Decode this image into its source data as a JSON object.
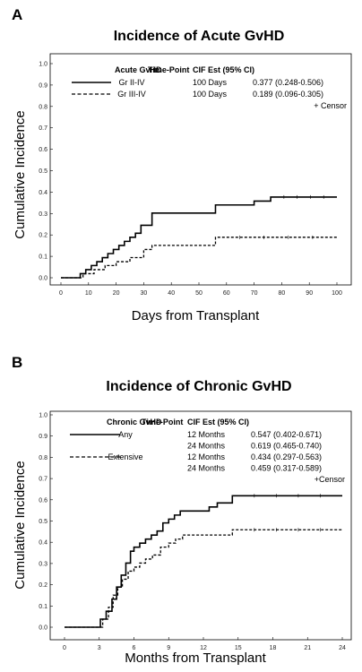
{
  "chart_data": [
    {
      "panel": "A",
      "type": "line",
      "step": true,
      "title": "Incidence of Acute GvHD",
      "xlabel": "Days from Transplant",
      "ylabel": "Cumulative Incidence",
      "xlim": [
        0,
        100
      ],
      "ylim": [
        0,
        1.0
      ],
      "xticks": [
        0,
        10,
        20,
        30,
        40,
        50,
        60,
        70,
        80,
        90,
        100
      ],
      "yticks": [
        "0.0",
        "0.1",
        "0.2",
        "0.3",
        "0.4",
        "0.5",
        "0.6",
        "0.7",
        "0.8",
        "0.9",
        "1.0"
      ],
      "legend": {
        "placement": "top-right",
        "headers": [
          "Acute GvHD",
          "Time-Point",
          "CIF Est (95% CI)"
        ],
        "rows": [
          {
            "label": "Gr II-IV",
            "time": "100 Days",
            "est": "0.377 (0.248-0.506)",
            "style": "solid"
          },
          {
            "label": "Gr III-IV",
            "time": "100 Days",
            "est": "0.189 (0.096-0.305)",
            "style": "dashed"
          }
        ],
        "censor_note": "+ Censor"
      },
      "series": [
        {
          "name": "Gr II-IV",
          "style": "solid",
          "x": [
            0,
            7,
            9,
            11,
            13,
            15,
            17,
            19,
            21,
            23,
            25,
            27,
            29,
            33,
            56,
            68,
            70,
            76,
            100
          ],
          "y": [
            0,
            0.019,
            0.038,
            0.057,
            0.075,
            0.094,
            0.113,
            0.132,
            0.151,
            0.17,
            0.189,
            0.208,
            0.245,
            0.302,
            0.34,
            0.34,
            0.358,
            0.377,
            0.377
          ]
        },
        {
          "name": "Gr III-IV",
          "style": "dashed",
          "x": [
            0,
            8,
            12,
            16,
            20,
            25,
            30,
            33,
            56,
            100
          ],
          "y": [
            0,
            0.019,
            0.038,
            0.057,
            0.075,
            0.094,
            0.132,
            0.151,
            0.189,
            0.189
          ]
        }
      ]
    },
    {
      "panel": "B",
      "type": "line",
      "step": true,
      "title": "Incidence of Chronic GvHD",
      "xlabel": "Months from Transplant",
      "ylabel": "Cumulative Incidence",
      "xlim": [
        0,
        24
      ],
      "ylim": [
        0,
        1.0
      ],
      "xticks": [
        0,
        3,
        6,
        9,
        12,
        15,
        18,
        21,
        24
      ],
      "yticks": [
        "0.0",
        "0.1",
        "0.2",
        "0.3",
        "0.4",
        "0.5",
        "0.6",
        "0.7",
        "0.8",
        "0.9",
        "1.0"
      ],
      "legend": {
        "placement": "top-right",
        "headers": [
          "Chronic GvHD",
          "Time-Point",
          "CIF Est (95% CI)"
        ],
        "rows": [
          {
            "label": "Any",
            "time": "12 Months",
            "est": "0.547 (0.402-0.671)",
            "style": "solid"
          },
          {
            "label": "",
            "time": "24 Months",
            "est": "0.619 (0.465-0.740)",
            "style": "none"
          },
          {
            "label": "Extensive",
            "time": "12 Months",
            "est": "0.434 (0.297-0.563)",
            "style": "dashed"
          },
          {
            "label": "",
            "time": "24 Months",
            "est": "0.459 (0.317-0.589)",
            "style": "none"
          }
        ],
        "censor_note": "+Censor"
      },
      "series": [
        {
          "name": "Any",
          "style": "solid",
          "x": [
            0,
            3.1,
            3.6,
            4.1,
            4.5,
            4.9,
            5.3,
            5.7,
            6.0,
            6.5,
            7.0,
            7.5,
            8.0,
            8.5,
            9.0,
            9.5,
            10.0,
            12.5,
            13.2,
            14.5,
            24
          ],
          "y": [
            0,
            0.038,
            0.075,
            0.132,
            0.189,
            0.245,
            0.302,
            0.358,
            0.377,
            0.396,
            0.415,
            0.434,
            0.453,
            0.491,
            0.509,
            0.528,
            0.547,
            0.566,
            0.585,
            0.619,
            0.619
          ]
        },
        {
          "name": "Extensive",
          "style": "dashed",
          "x": [
            0,
            3.3,
            3.8,
            4.2,
            4.6,
            5.0,
            5.5,
            6.0,
            6.5,
            7.0,
            7.6,
            8.3,
            9.0,
            9.6,
            10.2,
            14.5,
            24
          ],
          "y": [
            0,
            0.038,
            0.094,
            0.151,
            0.189,
            0.226,
            0.264,
            0.283,
            0.302,
            0.321,
            0.34,
            0.377,
            0.396,
            0.415,
            0.434,
            0.459,
            0.459
          ]
        }
      ]
    }
  ]
}
